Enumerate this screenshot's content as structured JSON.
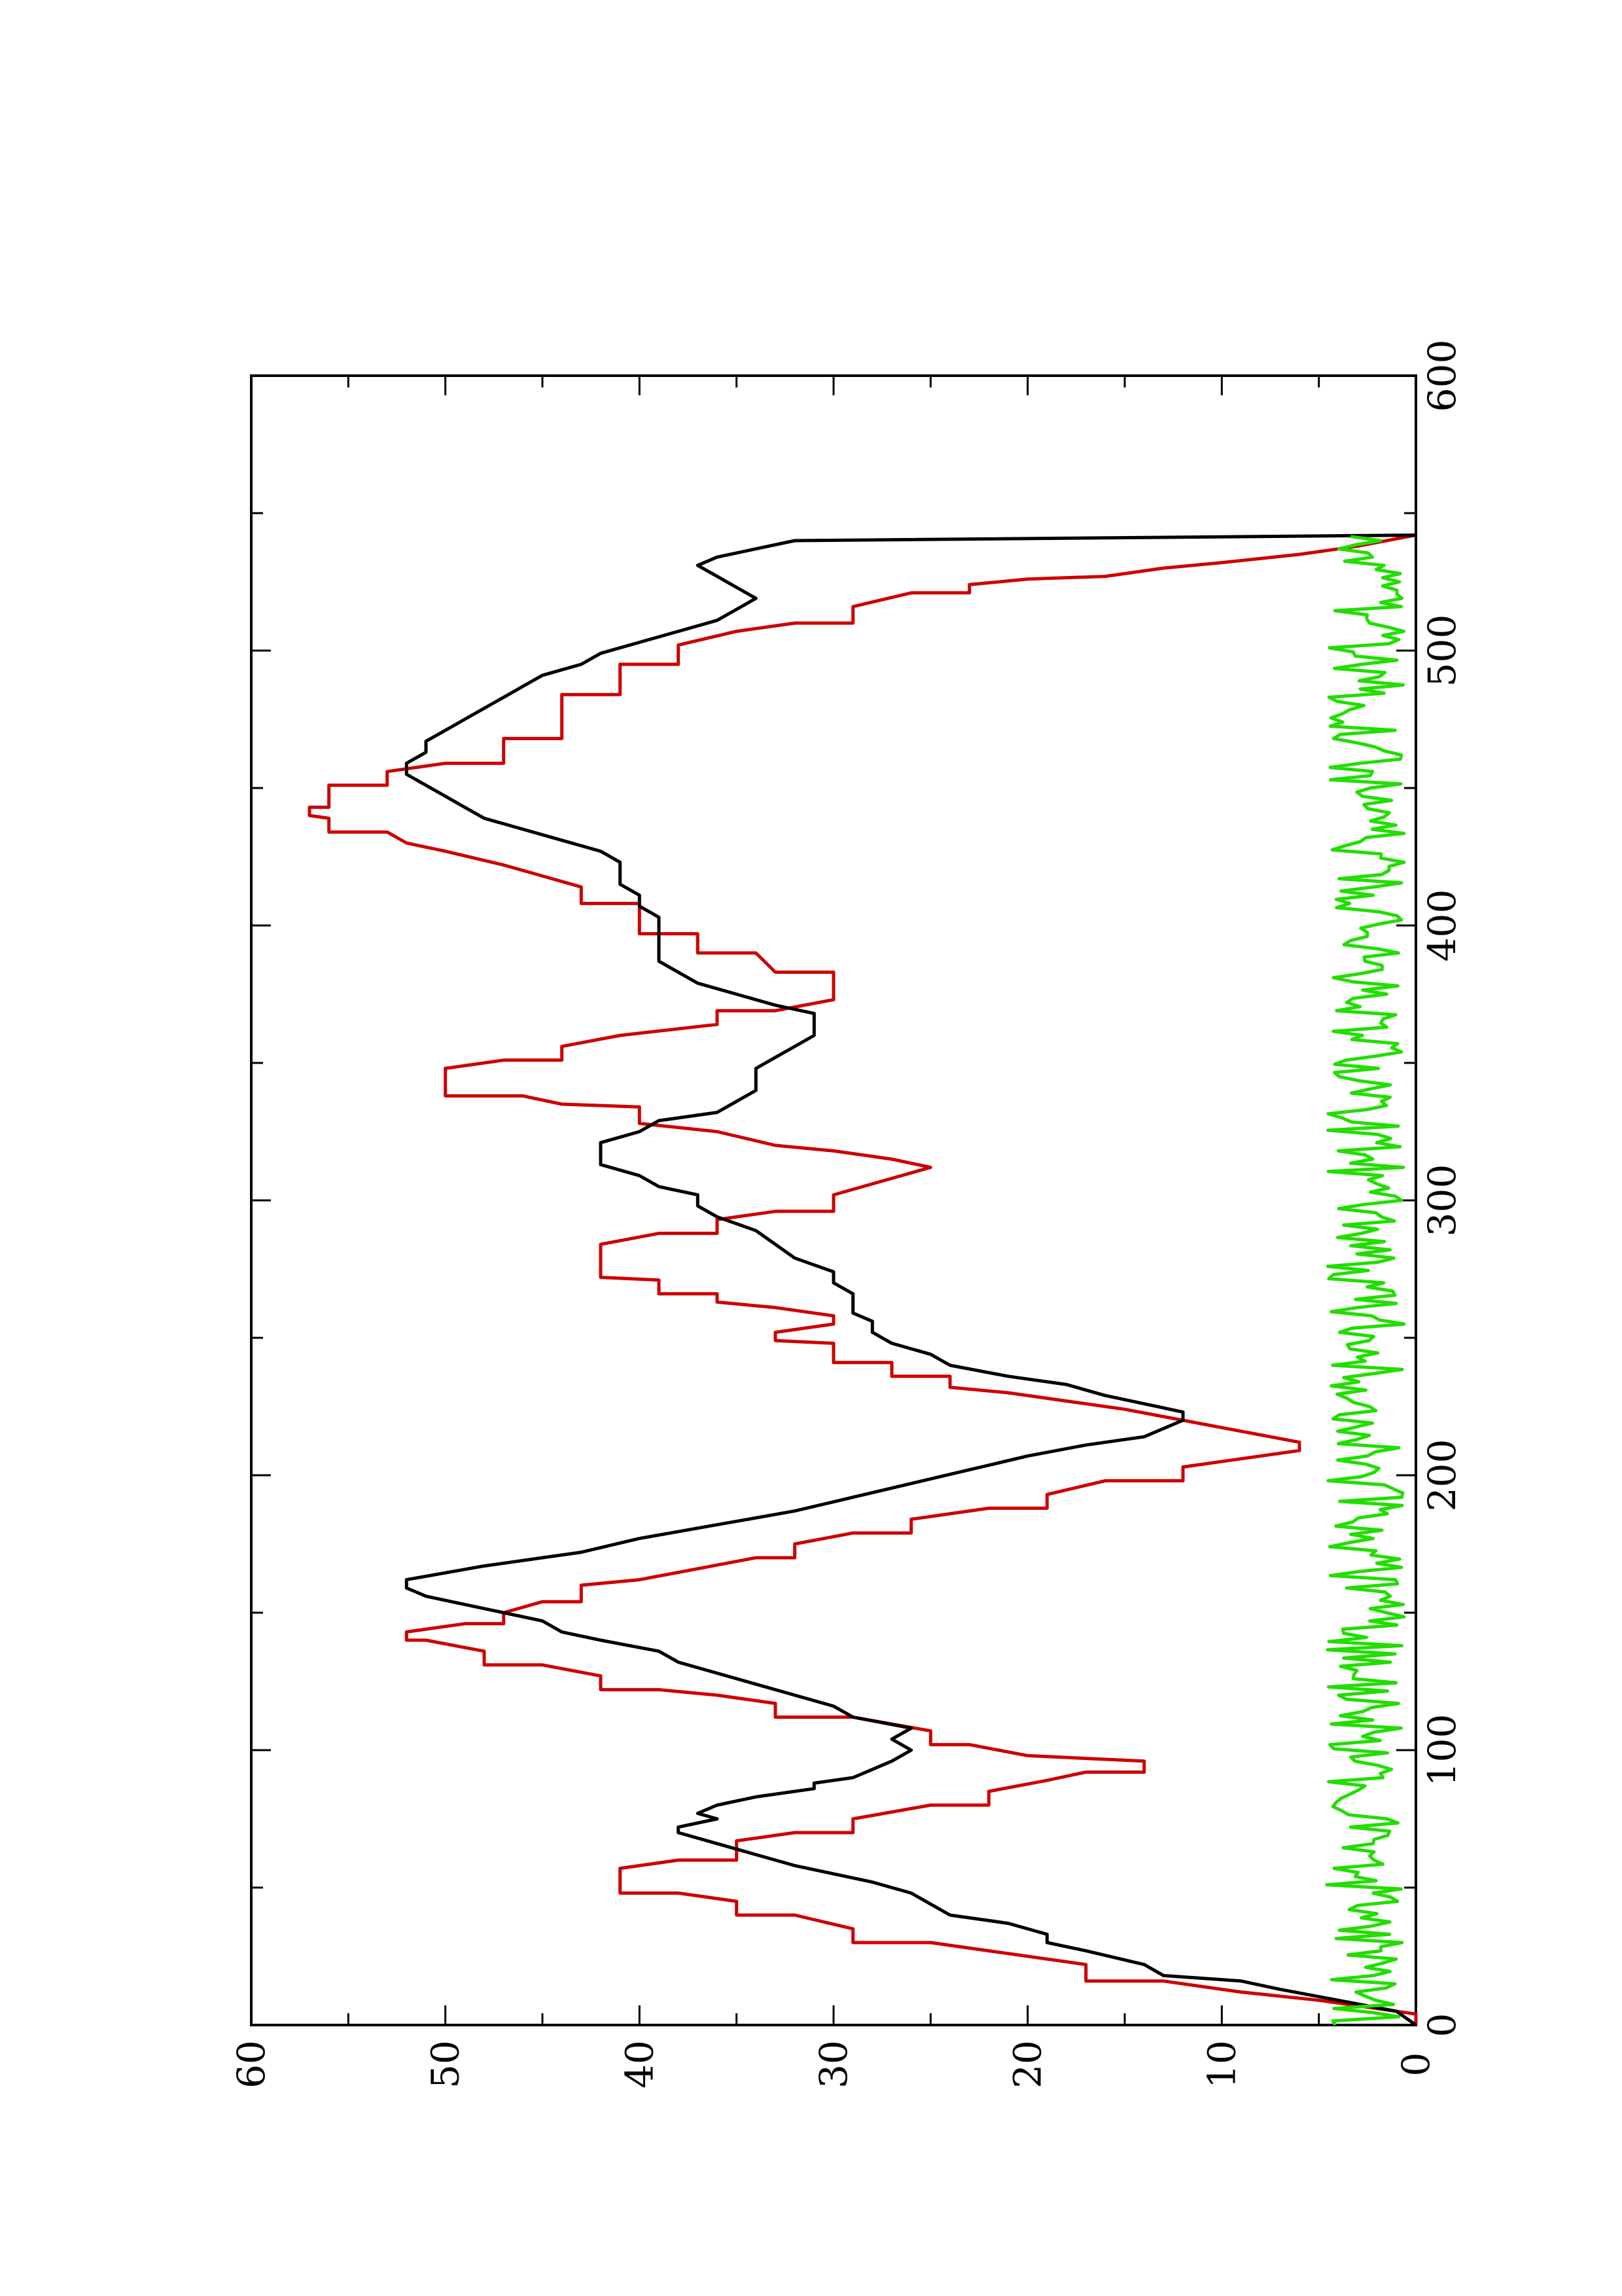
{
  "chart_data": {
    "type": "line",
    "orientation": "rotated-90-counterclockwise",
    "title": "",
    "xlabel": "",
    "ylabel": "",
    "xlim": [
      0,
      600
    ],
    "ylim": [
      0,
      60
    ],
    "x_ticks": [
      "0",
      "100",
      "200",
      "300",
      "400",
      "500",
      "600"
    ],
    "y_ticks": [
      "0",
      "10",
      "20",
      "30",
      "40",
      "50",
      "60"
    ],
    "legend": "none",
    "grid": false,
    "series": [
      {
        "color": "#cc0000",
        "style": "step",
        "points": [
          [
            0,
            0
          ],
          [
            4,
            0
          ],
          [
            9,
            5
          ],
          [
            12,
            9
          ],
          [
            16,
            13
          ],
          [
            16,
            17
          ],
          [
            22,
            17
          ],
          [
            27,
            22
          ],
          [
            30,
            25
          ],
          [
            30,
            29
          ],
          [
            35,
            29
          ],
          [
            40,
            32
          ],
          [
            40,
            35
          ],
          [
            45,
            35
          ],
          [
            48,
            38
          ],
          [
            48,
            41
          ],
          [
            57,
            41
          ],
          [
            60,
            38
          ],
          [
            60,
            35
          ],
          [
            67,
            35
          ],
          [
            70,
            32
          ],
          [
            70,
            29
          ],
          [
            75,
            29
          ],
          [
            80,
            25
          ],
          [
            80,
            22
          ],
          [
            85,
            22
          ],
          [
            89,
            19
          ],
          [
            92,
            17
          ],
          [
            92,
            14
          ],
          [
            96,
            14
          ],
          [
            97,
            17
          ],
          [
            98,
            20
          ],
          [
            102,
            23
          ],
          [
            102,
            25
          ],
          [
            107,
            25
          ],
          [
            112,
            29
          ],
          [
            112,
            33
          ],
          [
            117,
            33
          ],
          [
            120,
            36
          ],
          [
            122,
            39
          ],
          [
            122,
            42
          ],
          [
            127,
            42
          ],
          [
            131,
            45
          ],
          [
            131,
            48
          ],
          [
            136,
            48
          ],
          [
            140,
            51
          ],
          [
            140,
            52
          ],
          [
            143,
            52
          ],
          [
            146,
            49
          ],
          [
            146,
            47
          ],
          [
            150,
            47
          ],
          [
            154,
            45
          ],
          [
            154,
            43
          ],
          [
            160,
            43
          ],
          [
            162,
            40
          ],
          [
            166,
            37
          ],
          [
            170,
            34
          ],
          [
            170,
            32
          ],
          [
            175,
            32
          ],
          [
            179,
            29
          ],
          [
            179,
            26
          ],
          [
            184,
            26
          ],
          [
            188,
            22
          ],
          [
            188,
            19
          ],
          [
            193,
            19
          ],
          [
            198,
            16
          ],
          [
            198,
            12
          ],
          [
            203,
            12
          ],
          [
            206,
            9
          ],
          [
            209,
            6
          ],
          [
            212,
            6
          ],
          [
            216,
            9
          ],
          [
            220,
            12
          ],
          [
            224,
            15
          ],
          [
            227,
            18
          ],
          [
            230,
            21
          ],
          [
            232,
            24
          ],
          [
            236,
            24
          ],
          [
            236,
            27
          ],
          [
            241,
            27
          ],
          [
            241,
            30
          ],
          [
            248,
            30
          ],
          [
            249,
            33
          ],
          [
            252,
            33
          ],
          [
            255,
            30
          ],
          [
            258,
            30
          ],
          [
            261,
            33
          ],
          [
            263,
            36
          ],
          [
            266,
            36
          ],
          [
            266,
            39
          ],
          [
            271,
            39
          ],
          [
            272,
            42
          ],
          [
            284,
            42
          ],
          [
            288,
            39
          ],
          [
            288,
            36
          ],
          [
            293,
            36
          ],
          [
            296,
            33
          ],
          [
            296,
            30
          ],
          [
            302,
            30
          ],
          [
            308,
            27
          ],
          [
            312,
            25
          ],
          [
            315,
            27
          ],
          [
            318,
            30
          ],
          [
            320,
            33
          ],
          [
            325,
            36
          ],
          [
            328,
            40
          ],
          [
            334,
            40
          ],
          [
            335,
            44
          ],
          [
            338,
            46
          ],
          [
            338,
            50
          ],
          [
            348,
            50
          ],
          [
            351,
            47
          ],
          [
            351,
            44
          ],
          [
            356,
            44
          ],
          [
            360,
            41
          ],
          [
            364,
            36
          ],
          [
            369,
            36
          ],
          [
            369,
            33
          ],
          [
            373,
            30
          ],
          [
            383,
            30
          ],
          [
            383,
            33
          ],
          [
            390,
            34
          ],
          [
            390,
            37
          ],
          [
            397,
            37
          ],
          [
            397,
            40
          ],
          [
            408,
            40
          ],
          [
            408,
            43
          ],
          [
            414,
            43
          ],
          [
            418,
            45
          ],
          [
            422,
            47
          ],
          [
            427,
            50
          ],
          [
            430,
            52
          ],
          [
            434,
            53
          ],
          [
            434,
            56
          ],
          [
            439,
            56
          ],
          [
            440,
            57
          ],
          [
            443,
            57
          ],
          [
            443,
            56
          ],
          [
            451,
            56
          ],
          [
            451,
            53
          ],
          [
            456,
            53
          ],
          [
            459,
            50
          ],
          [
            459,
            47
          ],
          [
            468,
            47
          ],
          [
            468,
            44
          ],
          [
            484,
            44
          ],
          [
            484,
            41
          ],
          [
            495,
            41
          ],
          [
            495,
            38
          ],
          [
            502,
            38
          ],
          [
            507,
            35
          ],
          [
            510,
            32
          ],
          [
            510,
            29
          ],
          [
            516,
            29
          ],
          [
            521,
            26
          ],
          [
            521,
            23
          ],
          [
            524,
            23
          ],
          [
            526,
            20
          ],
          [
            527,
            16
          ],
          [
            530,
            13
          ],
          [
            532,
            10
          ],
          [
            535,
            6
          ],
          [
            538,
            3
          ],
          [
            542,
            0
          ]
        ]
      },
      {
        "color": "#000000",
        "style": "line",
        "points": [
          [
            0,
            0
          ],
          [
            5,
            1
          ],
          [
            9,
            4
          ],
          [
            13,
            7
          ],
          [
            16,
            9
          ],
          [
            18,
            13
          ],
          [
            22,
            14
          ],
          [
            27,
            17
          ],
          [
            30,
            19
          ],
          [
            33,
            19
          ],
          [
            37,
            21
          ],
          [
            40,
            24
          ],
          [
            44,
            25
          ],
          [
            48,
            26
          ],
          [
            52,
            28
          ],
          [
            58,
            32
          ],
          [
            62,
            34
          ],
          [
            66,
            36
          ],
          [
            70,
            38
          ],
          [
            72,
            38
          ],
          [
            75,
            36
          ],
          [
            77,
            37
          ],
          [
            80,
            36
          ],
          [
            83,
            34
          ],
          [
            86,
            31
          ],
          [
            88,
            31
          ],
          [
            90,
            29
          ],
          [
            93,
            28
          ],
          [
            96,
            27
          ],
          [
            100,
            26
          ],
          [
            104,
            27
          ],
          [
            108,
            26
          ],
          [
            112,
            29
          ],
          [
            116,
            30
          ],
          [
            120,
            32
          ],
          [
            124,
            34
          ],
          [
            128,
            36
          ],
          [
            132,
            38
          ],
          [
            136,
            39
          ],
          [
            140,
            42
          ],
          [
            143,
            44
          ],
          [
            147,
            45
          ],
          [
            150,
            47
          ],
          [
            153,
            49
          ],
          [
            156,
            51
          ],
          [
            159,
            52
          ],
          [
            162,
            52
          ],
          [
            167,
            48
          ],
          [
            172,
            43
          ],
          [
            177,
            40
          ],
          [
            182,
            36
          ],
          [
            187,
            32
          ],
          [
            192,
            29
          ],
          [
            197,
            26
          ],
          [
            202,
            23
          ],
          [
            207,
            20
          ],
          [
            211,
            17
          ],
          [
            214,
            14
          ],
          [
            217,
            13
          ],
          [
            220,
            12
          ],
          [
            223,
            12
          ],
          [
            226,
            14
          ],
          [
            229,
            16
          ],
          [
            233,
            18
          ],
          [
            236,
            21
          ],
          [
            240,
            24
          ],
          [
            244,
            25
          ],
          [
            248,
            27
          ],
          [
            252,
            28
          ],
          [
            256,
            28
          ],
          [
            259,
            29
          ],
          [
            262,
            29
          ],
          [
            266,
            29
          ],
          [
            270,
            30
          ],
          [
            274,
            30
          ],
          [
            279,
            32
          ],
          [
            284,
            33
          ],
          [
            289,
            34
          ],
          [
            294,
            36
          ],
          [
            298,
            37
          ],
          [
            302,
            37
          ],
          [
            305,
            39
          ],
          [
            309,
            40
          ],
          [
            313,
            42
          ],
          [
            317,
            42
          ],
          [
            321,
            42
          ],
          [
            325,
            40
          ],
          [
            329,
            39
          ],
          [
            332,
            36
          ],
          [
            336,
            35
          ],
          [
            340,
            34
          ],
          [
            344,
            34
          ],
          [
            348,
            34
          ],
          [
            352,
            33
          ],
          [
            356,
            32
          ],
          [
            360,
            31
          ],
          [
            364,
            31
          ],
          [
            368,
            31
          ],
          [
            371,
            33
          ],
          [
            375,
            35
          ],
          [
            379,
            37
          ],
          [
            383,
            38
          ],
          [
            387,
            39
          ],
          [
            391,
            39
          ],
          [
            395,
            39
          ],
          [
            399,
            39
          ],
          [
            403,
            39
          ],
          [
            407,
            40
          ],
          [
            411,
            40
          ],
          [
            415,
            41
          ],
          [
            419,
            41
          ],
          [
            423,
            41
          ],
          [
            427,
            42
          ],
          [
            431,
            44
          ],
          [
            435,
            46
          ],
          [
            439,
            48
          ],
          [
            443,
            49
          ],
          [
            447,
            50
          ],
          [
            451,
            51
          ],
          [
            455,
            52
          ],
          [
            459,
            52
          ],
          [
            463,
            51
          ],
          [
            467,
            51
          ],
          [
            471,
            50
          ],
          [
            475,
            49
          ],
          [
            479,
            48
          ],
          [
            483,
            47
          ],
          [
            487,
            46
          ],
          [
            491,
            45
          ],
          [
            495,
            43
          ],
          [
            499,
            42
          ],
          [
            503,
            40
          ],
          [
            507,
            38
          ],
          [
            511,
            36
          ],
          [
            515,
            35
          ],
          [
            519,
            34
          ],
          [
            523,
            35
          ],
          [
            527,
            36
          ],
          [
            531,
            37
          ],
          [
            534,
            36
          ],
          [
            537,
            34
          ],
          [
            540,
            32
          ],
          [
            542,
            0
          ]
        ]
      },
      {
        "color": "#22dd00",
        "style": "line",
        "mean": 2,
        "amplitude": 2,
        "xrange": [
          0,
          542
        ],
        "seed": 17
      }
    ]
  }
}
